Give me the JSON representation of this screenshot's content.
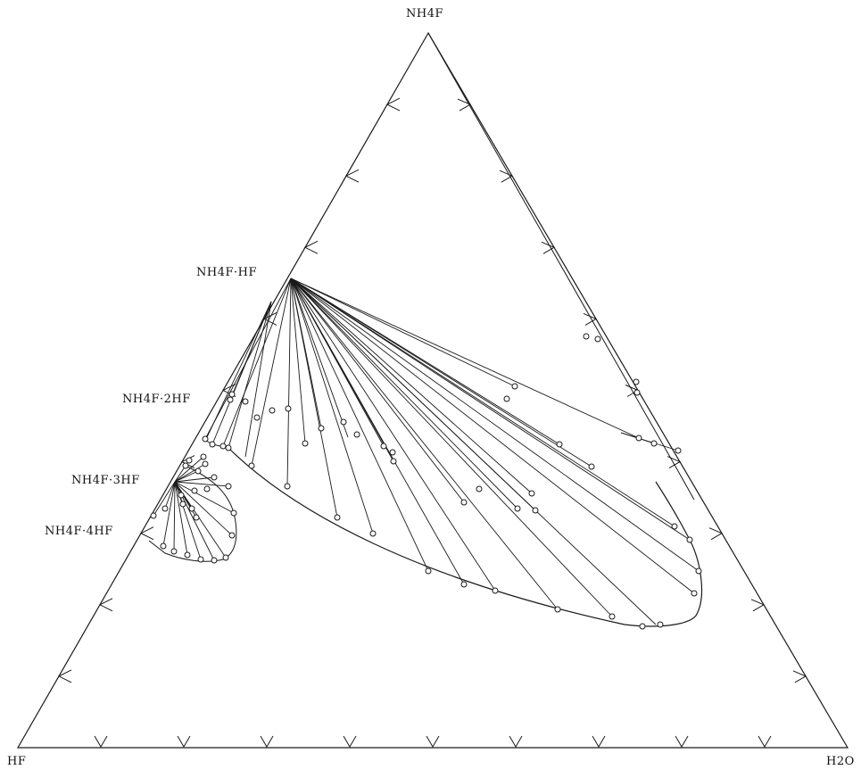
{
  "vertices": {
    "top": "NH4F",
    "left": "HF",
    "right": "H2O"
  },
  "compounds": {
    "c1": "NH4F·HF",
    "c2": "NH4F·2HF",
    "c3": "NH4F·3HF",
    "c4": "NH4F·4HF"
  }
}
